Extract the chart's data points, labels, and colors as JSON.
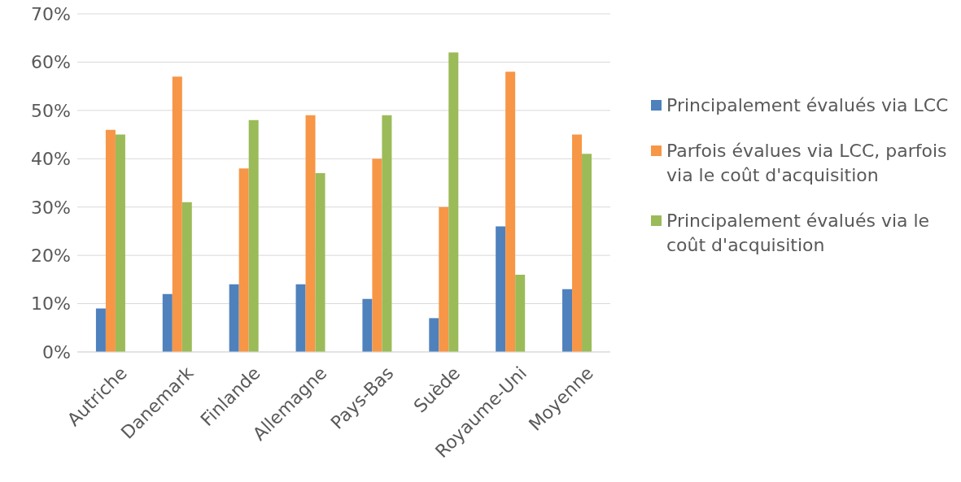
{
  "chart_data": {
    "type": "bar",
    "categories": [
      "Autriche",
      "Danemark",
      "Finlande",
      "Allemagne",
      "Pays-Bas",
      "Suède",
      "Royaume-Uni",
      "Moyenne"
    ],
    "series": [
      {
        "name": "Principalement évalués via LCC",
        "color": "#4f81bd",
        "values": [
          9,
          12,
          14,
          14,
          11,
          7,
          26,
          13
        ]
      },
      {
        "name": "Parfois évalues via LCC, parfois via le coût d'acquisition",
        "color": "#f79646",
        "values": [
          46,
          57,
          38,
          49,
          40,
          30,
          58,
          45
        ]
      },
      {
        "name": "Principalement évalués via le coût d'acquisition",
        "color": "#9bbb59",
        "values": [
          45,
          31,
          48,
          37,
          49,
          62,
          16,
          41
        ]
      }
    ],
    "ylim": [
      0,
      70
    ],
    "yticks": [
      {
        "value": 0,
        "label": "0%"
      },
      {
        "value": 10,
        "label": "10%"
      },
      {
        "value": 20,
        "label": "20%"
      },
      {
        "value": 30,
        "label": "30%"
      },
      {
        "value": 40,
        "label": "40%"
      },
      {
        "value": 50,
        "label": "50%"
      },
      {
        "value": 60,
        "label": "60%"
      },
      {
        "value": 70,
        "label": "70%"
      }
    ],
    "grid": "y",
    "legend": "right"
  }
}
